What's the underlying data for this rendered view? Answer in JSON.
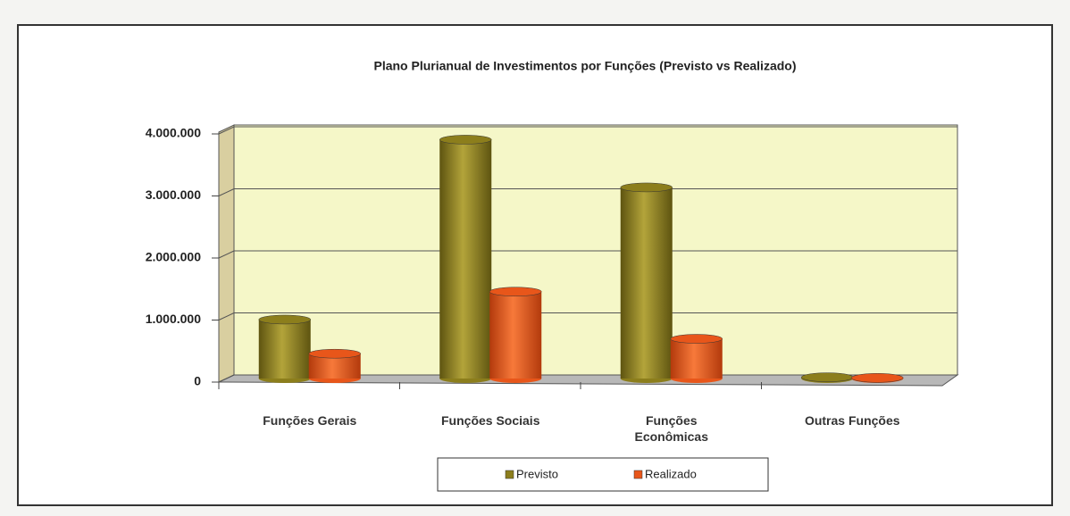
{
  "chart_data": {
    "type": "bar",
    "title": "Plano Plurianual de Investimentos por Funções (Previsto vs Realizado)",
    "categories": [
      "Funções Gerais",
      "Funções Sociais",
      "Funções Econômicas",
      "Outras Funções"
    ],
    "series": [
      {
        "name": "Previsto",
        "color": "#8c7e1c",
        "values": [
          950000,
          3850000,
          3080000,
          20000
        ]
      },
      {
        "name": "Realizado",
        "color": "#e8561a",
        "values": [
          400000,
          1400000,
          640000,
          10000
        ]
      }
    ],
    "ylim": [
      0,
      4000000
    ],
    "yticks": [
      0,
      {
        "value": 1000000,
        "label": "1.000.000"
      },
      {
        "value": 2000000,
        "label": "2.000.000"
      },
      {
        "value": 3000000,
        "label": "3.000.000"
      },
      {
        "value": 4000000,
        "label": "4.000.000"
      }
    ],
    "grid": true,
    "legend": "bottom"
  }
}
